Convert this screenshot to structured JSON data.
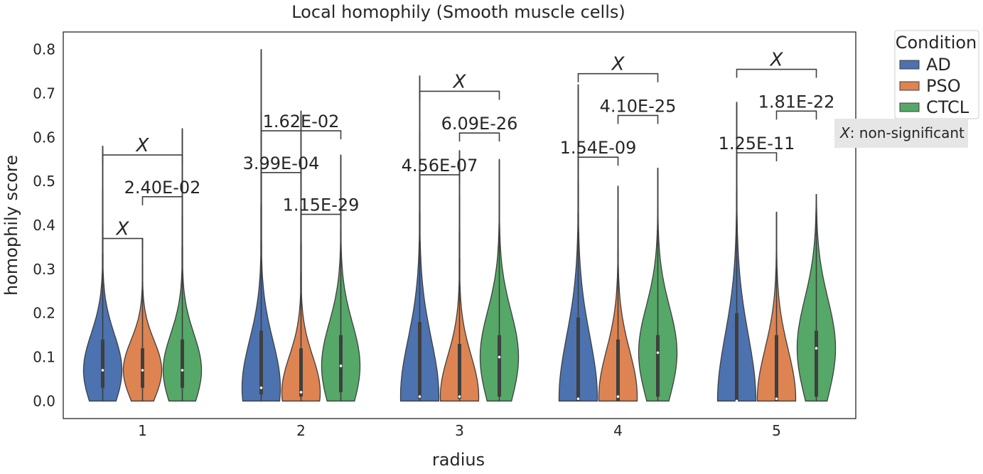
{
  "chart_data": {
    "type": "violin",
    "title": "Local homophily (Smooth muscle cells)",
    "xlabel": "radius",
    "ylabel": "homophily score",
    "categories": [
      "1",
      "2",
      "3",
      "4",
      "5"
    ],
    "ylim": [
      -0.04,
      0.84
    ],
    "yticks": [
      "0.0",
      "0.1",
      "0.2",
      "0.3",
      "0.4",
      "0.5",
      "0.6",
      "0.7",
      "0.8"
    ],
    "grid": false,
    "legend": {
      "title": "Condition",
      "position": "outside-top-right",
      "entries": [
        "AD",
        "PSO",
        "CTCL"
      ]
    },
    "colors": {
      "AD": "#4c72b0",
      "PSO": "#dd8452",
      "CTCL": "#55a868"
    },
    "series": [
      {
        "name": "AD",
        "min": [
          0.0,
          0.0,
          0.0,
          0.0,
          0.0
        ],
        "max": [
          0.58,
          0.8,
          0.74,
          0.72,
          0.68
        ],
        "q1": [
          0.03,
          0.015,
          0.005,
          0.0,
          0.0
        ],
        "median": [
          0.07,
          0.03,
          0.01,
          0.005,
          0.0
        ],
        "q3": [
          0.14,
          0.16,
          0.18,
          0.19,
          0.2
        ]
      },
      {
        "name": "PSO",
        "min": [
          0.0,
          0.0,
          0.0,
          0.0,
          0.0
        ],
        "max": [
          0.37,
          0.66,
          0.57,
          0.49,
          0.43
        ],
        "q1": [
          0.03,
          0.01,
          0.005,
          0.0,
          0.0
        ],
        "median": [
          0.07,
          0.02,
          0.01,
          0.01,
          0.005
        ],
        "q3": [
          0.12,
          0.12,
          0.13,
          0.14,
          0.15
        ]
      },
      {
        "name": "CTCL",
        "min": [
          0.0,
          0.0,
          0.0,
          0.0,
          0.0
        ],
        "max": [
          0.62,
          0.56,
          0.55,
          0.53,
          0.47
        ],
        "q1": [
          0.03,
          0.02,
          0.01,
          0.01,
          0.01
        ],
        "median": [
          0.07,
          0.08,
          0.1,
          0.11,
          0.12
        ],
        "q3": [
          0.14,
          0.15,
          0.15,
          0.15,
          0.16
        ]
      }
    ],
    "significance": [
      {
        "category": "1",
        "from": "AD",
        "to": "PSO",
        "label": "X",
        "y": 0.37,
        "italic": true
      },
      {
        "category": "1",
        "from": "PSO",
        "to": "CTCL",
        "label": "2.40E-02",
        "y": 0.465
      },
      {
        "category": "1",
        "from": "AD",
        "to": "CTCL",
        "label": "X",
        "y": 0.56,
        "italic": true
      },
      {
        "category": "2",
        "from": "AD",
        "to": "PSO",
        "label": "3.99E-04",
        "y": 0.52
      },
      {
        "category": "2",
        "from": "PSO",
        "to": "CTCL",
        "label": "1.15E-29",
        "y": 0.425
      },
      {
        "category": "2",
        "from": "AD",
        "to": "CTCL",
        "label": "1.62E-02",
        "y": 0.615
      },
      {
        "category": "3",
        "from": "AD",
        "to": "PSO",
        "label": "4.56E-07",
        "y": 0.515
      },
      {
        "category": "3",
        "from": "PSO",
        "to": "CTCL",
        "label": "6.09E-26",
        "y": 0.61
      },
      {
        "category": "3",
        "from": "AD",
        "to": "CTCL",
        "label": "X",
        "y": 0.705,
        "italic": true
      },
      {
        "category": "4",
        "from": "AD",
        "to": "PSO",
        "label": "1.54E-09",
        "y": 0.555
      },
      {
        "category": "4",
        "from": "PSO",
        "to": "CTCL",
        "label": "4.10E-25",
        "y": 0.65
      },
      {
        "category": "4",
        "from": "AD",
        "to": "CTCL",
        "label": "X",
        "y": 0.745,
        "italic": true
      },
      {
        "category": "5",
        "from": "AD",
        "to": "PSO",
        "label": "1.25E-11",
        "y": 0.565
      },
      {
        "category": "5",
        "from": "PSO",
        "to": "CTCL",
        "label": "1.81E-22",
        "y": 0.66
      },
      {
        "category": "5",
        "from": "AD",
        "to": "CTCL",
        "label": "X",
        "y": 0.755,
        "italic": true
      }
    ],
    "annotation": {
      "symbol": "X",
      "text": ": non-significant"
    }
  }
}
